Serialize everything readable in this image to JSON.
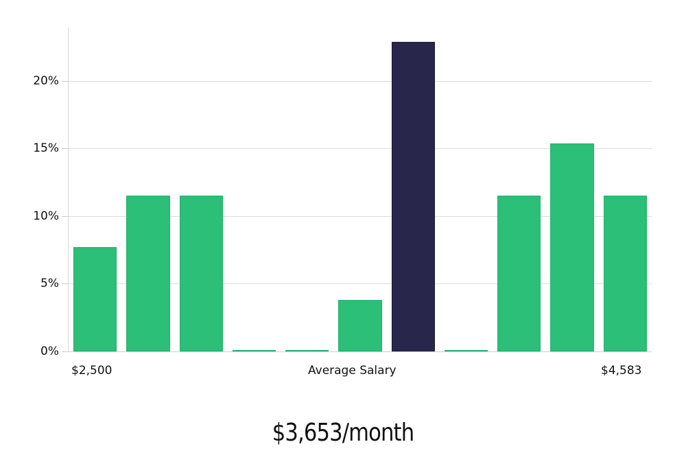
{
  "chart_data": {
    "type": "bar",
    "title": "",
    "xlabel": "Average Salary",
    "ylabel": "",
    "ylim": [
      0,
      24
    ],
    "y_ticks": [
      "0%",
      "5%",
      "10%",
      "15%",
      "20%"
    ],
    "x_range_labels": {
      "min": "$2,500",
      "max": "$4,583"
    },
    "categories": [
      "bin1",
      "bin2",
      "bin3",
      "bin4",
      "bin5",
      "bin6",
      "bin7",
      "bin8",
      "bin9",
      "bin10",
      "bin11"
    ],
    "values": [
      7.7,
      11.5,
      11.5,
      0,
      0,
      3.8,
      22.9,
      0,
      11.5,
      15.4,
      11.5
    ],
    "highlight_index": 6,
    "colors": {
      "bar": "#2bbf78",
      "highlight": "#28264a",
      "grid": "#dcdcdc"
    },
    "grid": true
  },
  "axis": {
    "y0": "0%",
    "y5": "5%",
    "y10": "10%",
    "y15": "15%",
    "y20": "20%",
    "x_min": "$2,500",
    "x_label": "Average Salary",
    "x_max": "$4,583"
  },
  "headline": "$3,653/month"
}
